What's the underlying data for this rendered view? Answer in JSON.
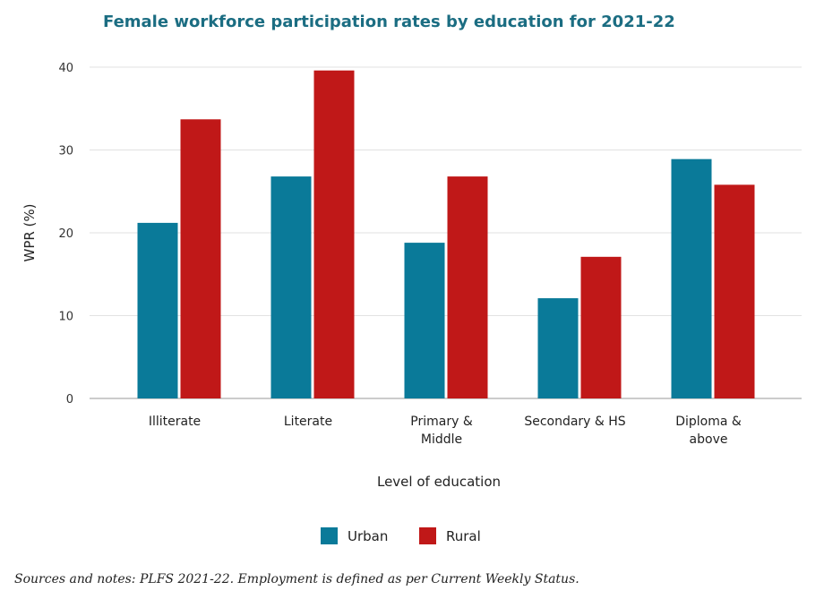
{
  "chart_data": {
    "type": "bar",
    "title": "Female workforce participation rates by education for 2021-22",
    "xlabel": "Level of education",
    "ylabel": "WPR (%)",
    "ylim": [
      0,
      40
    ],
    "yticks": [
      "0",
      "10",
      "20",
      "30",
      "40"
    ],
    "grid": true,
    "legend": "bottom",
    "categories": [
      [
        "Illiterate"
      ],
      [
        "Literate"
      ],
      [
        "Primary &",
        "Middle"
      ],
      [
        "Secondary & HS"
      ],
      [
        "Diploma &",
        "above"
      ]
    ],
    "series": [
      {
        "name": "Urban",
        "color": "#0a7a99",
        "values": [
          21.2,
          26.8,
          18.8,
          12.1,
          28.9
        ]
      },
      {
        "name": "Rural",
        "color": "#c01818",
        "values": [
          33.7,
          39.6,
          26.8,
          17.1,
          25.8
        ]
      }
    ],
    "title_color": "#1b6d82",
    "note": "Sources and notes: PLFS 2021-22. Employment is defined as per Current Weekly Status."
  }
}
